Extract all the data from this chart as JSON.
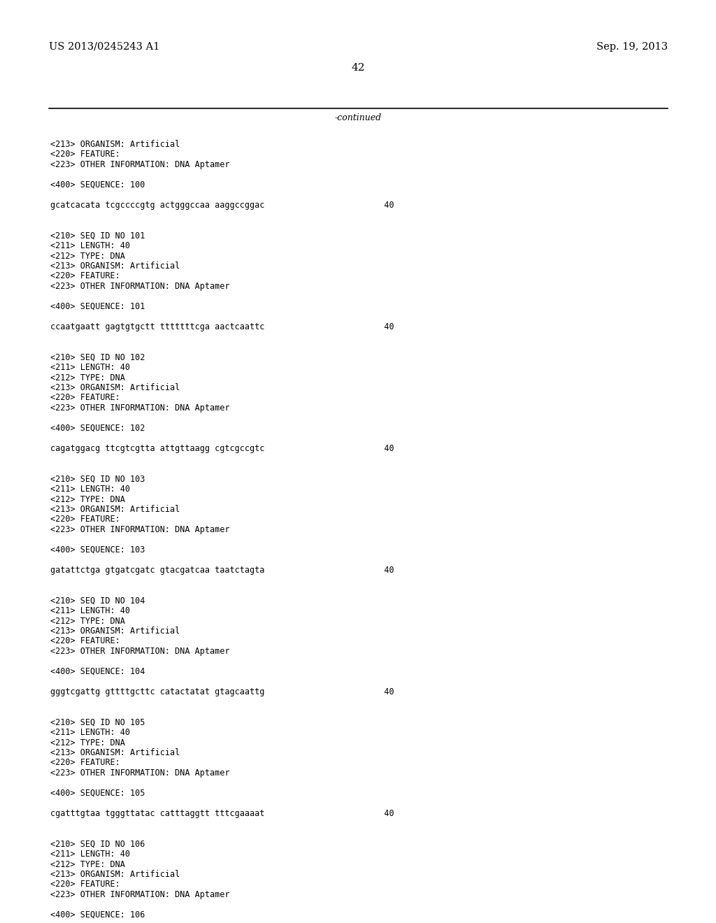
{
  "bg_color": "#ffffff",
  "text_color": "#000000",
  "header_left": "US 2013/0245243 A1",
  "header_right": "Sep. 19, 2013",
  "page_number": "42",
  "continued_text": "-continued",
  "font_size_header": 10.5,
  "font_size_page": 11,
  "font_size_mono": 8.5,
  "font_size_continued": 9,
  "mono_font": "DejaVu Sans Mono",
  "serif_font": "DejaVu Serif",
  "content_lines": [
    "<213> ORGANISM: Artificial",
    "<220> FEATURE:",
    "<223> OTHER INFORMATION: DNA Aptamer",
    "",
    "<400> SEQUENCE: 100",
    "",
    "gcatcacata tcgccccgtg actgggccaa aaggccggac                        40",
    "",
    "",
    "<210> SEQ ID NO 101",
    "<211> LENGTH: 40",
    "<212> TYPE: DNA",
    "<213> ORGANISM: Artificial",
    "<220> FEATURE:",
    "<223> OTHER INFORMATION: DNA Aptamer",
    "",
    "<400> SEQUENCE: 101",
    "",
    "ccaatgaatt gagtgtgctt tttttttcga aactcaattc                        40",
    "",
    "",
    "<210> SEQ ID NO 102",
    "<211> LENGTH: 40",
    "<212> TYPE: DNA",
    "<213> ORGANISM: Artificial",
    "<220> FEATURE:",
    "<223> OTHER INFORMATION: DNA Aptamer",
    "",
    "<400> SEQUENCE: 102",
    "",
    "cagatggacg ttcgtcgtta attgttaagg cgtcgccgtc                        40",
    "",
    "",
    "<210> SEQ ID NO 103",
    "<211> LENGTH: 40",
    "<212> TYPE: DNA",
    "<213> ORGANISM: Artificial",
    "<220> FEATURE:",
    "<223> OTHER INFORMATION: DNA Aptamer",
    "",
    "<400> SEQUENCE: 103",
    "",
    "gatattctga gtgatcgatc gtacgatcaa taatctagta                        40",
    "",
    "",
    "<210> SEQ ID NO 104",
    "<211> LENGTH: 40",
    "<212> TYPE: DNA",
    "<213> ORGANISM: Artificial",
    "<220> FEATURE:",
    "<223> OTHER INFORMATION: DNA Aptamer",
    "",
    "<400> SEQUENCE: 104",
    "",
    "gggtcgattg gttttgcttc catactatat gtagcaattg                        40",
    "",
    "",
    "<210> SEQ ID NO 105",
    "<211> LENGTH: 40",
    "<212> TYPE: DNA",
    "<213> ORGANISM: Artificial",
    "<220> FEATURE:",
    "<223> OTHER INFORMATION: DNA Aptamer",
    "",
    "<400> SEQUENCE: 105",
    "",
    "cgatttgtaa tgggttatac catttaggtt tttcgaaaat                        40",
    "",
    "",
    "<210> SEQ ID NO 106",
    "<211> LENGTH: 40",
    "<212> TYPE: DNA",
    "<213> ORGANISM: Artificial",
    "<220> FEATURE:",
    "<223> OTHER INFORMATION: DNA Aptamer",
    "",
    "<400> SEQUENCE: 106"
  ]
}
